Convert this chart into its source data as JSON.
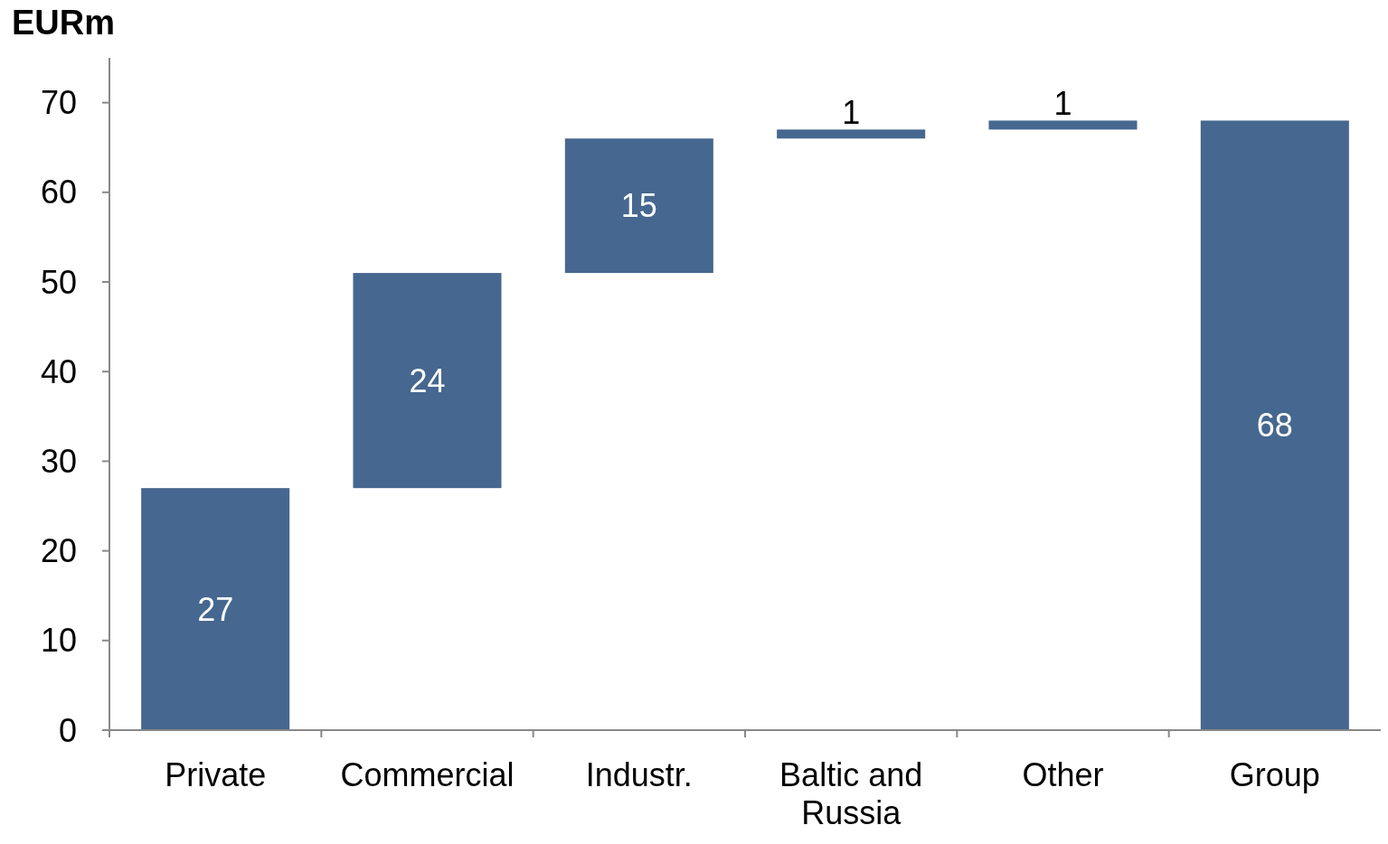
{
  "chart_data": {
    "type": "bar",
    "ylabel": "EURm",
    "categories": [
      "Private",
      "Commercial",
      "Industr.",
      "Baltic and Russia",
      "Other",
      "Group"
    ],
    "values": [
      27,
      24,
      15,
      1,
      1,
      68
    ],
    "base": [
      0,
      27,
      51,
      66,
      67,
      0
    ],
    "color": "#46678f",
    "ylim": [
      0,
      75
    ],
    "yticks": [
      0,
      10,
      20,
      30,
      40,
      50,
      60,
      70
    ],
    "data_labels": true,
    "grid": false
  }
}
